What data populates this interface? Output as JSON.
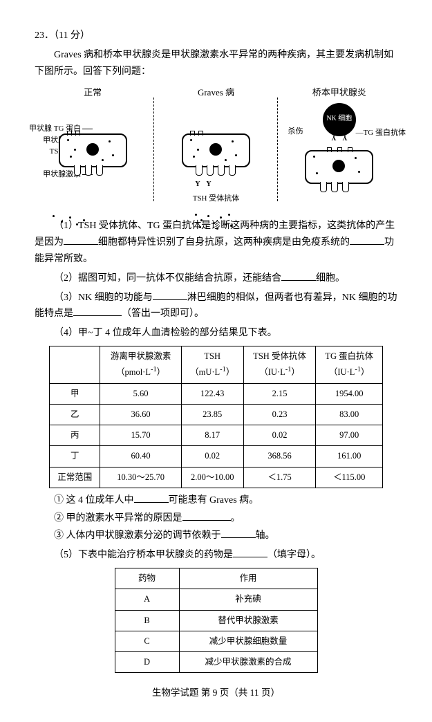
{
  "question": {
    "number": "23．（11 分）",
    "intro1": "Graves 病和桥本甲状腺炎是甲状腺激素水平异常的两种疾病，其主要发病机制如下图所示。回答下列问题：",
    "diagram": {
      "col1_title": "正常",
      "col2_title": "Graves 病",
      "col3_title": "桥本甲状腺炎",
      "labels": {
        "tg_protein": "甲状腺 TG 蛋白",
        "thyroid_cell": "甲状腺细胞",
        "tsh_receptor": "TSH 受体",
        "tsh": "TSH",
        "thyroid_hormone": "甲状腺激素",
        "tsh_receptor_antibody": "TSH 受体抗体",
        "nk_cell": "NK 细胞",
        "kill": "杀伤",
        "tg_antibody": "TG 蛋白抗体"
      }
    },
    "q1_a": "（1）TSH 受体抗体、TG 蛋白抗体是诊断这两种病的主要指标，这类抗体的产生是因为",
    "q1_b": "细胞都特异性识别了自身抗原，这两种疾病是由免疫系统的",
    "q1_c": "功能异常所致。",
    "q2_a": "（2）据图可知，同一抗体不仅能结合抗原，还能结合",
    "q2_b": "细胞。",
    "q3_a": "（3）NK 细胞的功能与",
    "q3_b": "淋巴细胞的相似，但两者也有差异，NK 细胞的功能特点是",
    "q3_c": "（答出一项即可）。",
    "q4_intro": "（4）甲~丁 4 位成年人血清检验的部分结果见下表。",
    "table1": {
      "headers": [
        "",
        "游离甲状腺激素\n（pmol·L⁻¹）",
        "TSH\n（mU·L⁻¹）",
        "TSH 受体抗体\n（IU·L⁻¹）",
        "TG 蛋白抗体\n（IU·L⁻¹）"
      ],
      "rows": [
        [
          "甲",
          "5.60",
          "122.43",
          "2.15",
          "1954.00"
        ],
        [
          "乙",
          "36.60",
          "23.85",
          "0.23",
          "83.00"
        ],
        [
          "丙",
          "15.70",
          "8.17",
          "0.02",
          "97.00"
        ],
        [
          "丁",
          "60.40",
          "0.02",
          "368.56",
          "161.00"
        ],
        [
          "正常范围",
          "10.30～25.70",
          "2.00～10.00",
          "＜1.75",
          "＜115.00"
        ]
      ]
    },
    "q4_1a": "① 这 4 位成年人中",
    "q4_1b": "可能患有 Graves 病。",
    "q4_2a": "② 甲的激素水平异常的原因是",
    "q4_2b": "。",
    "q4_3a": "③ 人体内甲状腺激素分泌的调节依赖于",
    "q4_3b": "轴。",
    "q5_a": "（5）下表中能治疗桥本甲状腺炎的药物是",
    "q5_b": "（填字母）。",
    "table2": {
      "headers": [
        "药物",
        "作用"
      ],
      "rows": [
        [
          "A",
          "补充碘"
        ],
        [
          "B",
          "替代甲状腺激素"
        ],
        [
          "C",
          "减少甲状腺细胞数量"
        ],
        [
          "D",
          "减少甲状腺激素的合成"
        ]
      ]
    }
  },
  "footer": "生物学试题 第 9 页（共 11 页）"
}
